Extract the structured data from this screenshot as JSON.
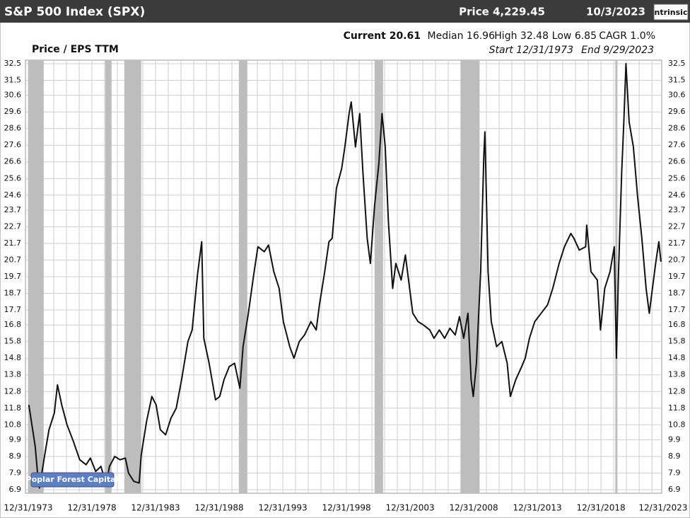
{
  "header": {
    "title": "S&P 500 Index (SPX)",
    "price": "Price 4,229.45",
    "date": "10/3/2023",
    "logo": "ntrinsic"
  },
  "stats": {
    "current": "Current 20.61",
    "median": "Median 16.96",
    "high": "High 32.48",
    "low": "Low 6.85",
    "cagr": "CAGR 1.0%",
    "start": "Start 12/31/1973",
    "end": "End 9/29/2023"
  },
  "watermark": "Poplar Forest Capital",
  "chart_data": {
    "type": "line",
    "y_label": "Price / EPS TTM",
    "xlim": [
      "1973-12-31",
      "2023-09-29"
    ],
    "xticks": [
      {
        "value": "1973-12-31",
        "label": "12/31/1973"
      },
      {
        "value": "1978-12-31",
        "label": "12/31/1978"
      },
      {
        "value": "1983-12-31",
        "label": "12/31/1983"
      },
      {
        "value": "1988-12-31",
        "label": "12/31/1988"
      },
      {
        "value": "1993-12-31",
        "label": "12/31/1993"
      },
      {
        "value": "1998-12-31",
        "label": "12/31/1998"
      },
      {
        "value": "2003-12-31",
        "label": "12/31/2003"
      },
      {
        "value": "2008-12-31",
        "label": "12/31/2008"
      },
      {
        "value": "2013-12-31",
        "label": "12/31/2013"
      },
      {
        "value": "2018-12-31",
        "label": "12/31/2018"
      },
      {
        "value": "2023-12-31",
        "label": "12/31/2023"
      }
    ],
    "ylim": [
      6.9,
      32.5
    ],
    "yticks": [
      6.9,
      7.9,
      8.9,
      9.9,
      10.8,
      11.8,
      12.8,
      13.8,
      14.8,
      15.8,
      16.8,
      17.7,
      18.7,
      19.7,
      20.7,
      21.7,
      22.7,
      23.7,
      24.6,
      25.6,
      26.6,
      27.6,
      28.6,
      29.6,
      30.6,
      31.5,
      32.5
    ],
    "grid": true,
    "shaded_periods": [
      {
        "start": "1973-11",
        "end": "1975-03"
      },
      {
        "start": "1980-01",
        "end": "1980-07"
      },
      {
        "start": "1981-07",
        "end": "1982-11"
      },
      {
        "start": "1990-07",
        "end": "1991-03"
      },
      {
        "start": "2001-03",
        "end": "2001-11"
      },
      {
        "start": "2007-12",
        "end": "2009-06"
      },
      {
        "start": "2020-02",
        "end": "2020-04"
      }
    ],
    "shade_color": "#bdbdbd",
    "x": [
      "1974-01",
      "1974-07",
      "1974-10",
      "1974-11",
      "1975-04",
      "1975-08",
      "1976-01",
      "1976-04",
      "1976-08",
      "1977-01",
      "1977-07",
      "1978-01",
      "1978-07",
      "1978-11",
      "1979-04",
      "1979-09",
      "1980-02",
      "1980-05",
      "1980-10",
      "1981-03",
      "1981-08",
      "1981-11",
      "1982-04",
      "1982-09",
      "1982-11",
      "1983-04",
      "1983-09",
      "1984-01",
      "1984-05",
      "1984-10",
      "1985-03",
      "1985-08",
      "1986-01",
      "1986-07",
      "1986-11",
      "1987-04",
      "1987-08",
      "1987-10",
      "1988-03",
      "1988-09",
      "1989-01",
      "1989-05",
      "1989-10",
      "1990-03",
      "1990-08",
      "1990-11",
      "1991-04",
      "1991-09",
      "1992-01",
      "1992-07",
      "1992-11",
      "1993-04",
      "1993-09",
      "1994-01",
      "1994-07",
      "1994-11",
      "1995-04",
      "1995-09",
      "1996-03",
      "1996-08",
      "1996-11",
      "1997-04",
      "1997-08",
      "1997-11",
      "1998-03",
      "1998-08",
      "1998-11",
      "1999-03",
      "1999-05",
      "1999-09",
      "2000-01",
      "2000-04",
      "2000-08",
      "2000-11",
      "2001-03",
      "2001-07",
      "2001-10",
      "2002-01",
      "2002-04",
      "2002-08",
      "2002-11",
      "2003-04",
      "2003-08",
      "2003-11",
      "2004-03",
      "2004-08",
      "2005-01",
      "2005-07",
      "2005-11",
      "2006-04",
      "2006-09",
      "2007-02",
      "2007-07",
      "2007-11",
      "2008-03",
      "2008-07",
      "2008-10",
      "2008-12",
      "2009-03",
      "2009-07",
      "2009-10",
      "2009-11",
      "2010-02",
      "2010-05",
      "2010-10",
      "2011-03",
      "2011-08",
      "2011-11",
      "2012-04",
      "2012-09",
      "2013-01",
      "2013-05",
      "2013-10",
      "2014-04",
      "2014-10",
      "2015-03",
      "2015-09",
      "2016-02",
      "2016-08",
      "2016-11",
      "2017-04",
      "2017-10",
      "2017-11",
      "2018-03",
      "2018-09",
      "2018-12",
      "2019-04",
      "2019-09",
      "2020-01",
      "2020-03",
      "2020-05",
      "2020-08",
      "2020-10",
      "2020-12",
      "2021-03",
      "2021-07",
      "2021-11",
      "2022-03",
      "2022-07",
      "2022-10",
      "2023-01",
      "2023-04",
      "2023-07",
      "2023-09"
    ],
    "series": [
      {
        "name": "Price / EPS TTM",
        "color": "#111111",
        "values": [
          12.0,
          9.5,
          7.3,
          7.0,
          9.0,
          10.5,
          11.5,
          13.2,
          12.0,
          10.8,
          9.8,
          8.7,
          8.4,
          8.8,
          8.0,
          8.3,
          7.2,
          8.3,
          8.9,
          8.7,
          8.8,
          7.9,
          7.4,
          7.3,
          9.0,
          11.0,
          12.5,
          12.0,
          10.5,
          10.2,
          11.2,
          11.8,
          13.5,
          15.8,
          16.5,
          19.8,
          21.8,
          16.0,
          14.5,
          12.3,
          12.5,
          13.5,
          14.3,
          14.5,
          13.0,
          15.5,
          17.5,
          19.8,
          21.5,
          21.2,
          21.6,
          20.0,
          19.0,
          17.0,
          15.5,
          14.8,
          15.8,
          16.2,
          17.0,
          16.5,
          18.0,
          20.0,
          21.8,
          22.0,
          25.0,
          26.2,
          27.5,
          29.5,
          30.2,
          27.5,
          29.5,
          26.0,
          22.0,
          20.5,
          24.0,
          26.5,
          29.5,
          27.5,
          23.0,
          19.0,
          20.5,
          19.5,
          21.0,
          19.5,
          17.5,
          17.0,
          16.8,
          16.5,
          16.0,
          16.5,
          16.0,
          16.6,
          16.2,
          17.3,
          16.0,
          17.5,
          13.5,
          12.5,
          14.5,
          20.0,
          27.0,
          28.4,
          20.0,
          17.0,
          15.5,
          15.8,
          14.5,
          12.5,
          13.5,
          14.2,
          14.8,
          16.0,
          17.0,
          17.5,
          18.0,
          19.0,
          20.5,
          21.5,
          22.3,
          22.0,
          21.3,
          21.5,
          22.8,
          20.0,
          19.5,
          16.5,
          19.0,
          20.0,
          21.5,
          14.8,
          20.0,
          26.0,
          29.0,
          32.5,
          29.0,
          27.5,
          24.5,
          22.0,
          19.0,
          17.5,
          19.0,
          20.5,
          21.8,
          20.6
        ]
      }
    ]
  }
}
